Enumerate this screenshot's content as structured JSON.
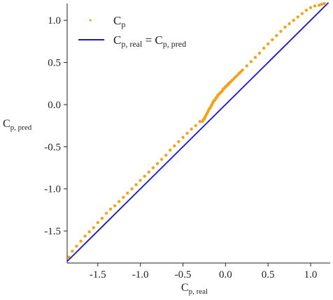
{
  "chart_data": {
    "type": "scatter",
    "title": "",
    "xlabel": {
      "main": "C",
      "sub": "p, real"
    },
    "ylabel": {
      "main": "C",
      "sub": "p, pred"
    },
    "xlim": [
      -1.86,
      1.23
    ],
    "ylim": [
      -1.88,
      1.2
    ],
    "xticks": [
      -1.5,
      -1.0,
      -0.5,
      0.0,
      0.5,
      1.0
    ],
    "yticks": [
      -1.5,
      -1.0,
      -0.5,
      0.0,
      0.5,
      1.0
    ],
    "xtick_labels": [
      "-1.5",
      "-1.0",
      "-0.5",
      "0.0",
      "0.5",
      "1.0"
    ],
    "ytick_labels": [
      "-1.5",
      "-1.0",
      "-0.5",
      "0.0",
      "0.5",
      "1.0"
    ],
    "grid": false,
    "legend_position": "top-left",
    "series": [
      {
        "name": {
          "main": "C",
          "sub": "p"
        },
        "kind": "scatter",
        "color": "#f5a21b",
        "x": [
          -1.84,
          -1.8,
          -1.75,
          -1.7,
          -1.65,
          -1.6,
          -1.55,
          -1.5,
          -1.45,
          -1.4,
          -1.35,
          -1.3,
          -1.25,
          -1.2,
          -1.15,
          -1.1,
          -1.05,
          -1.0,
          -0.95,
          -0.9,
          -0.85,
          -0.8,
          -0.75,
          -0.7,
          -0.65,
          -0.6,
          -0.55,
          -0.5,
          -0.45,
          -0.4,
          -0.35,
          -0.3,
          -0.27,
          -0.26,
          -0.25,
          -0.24,
          -0.23,
          -0.22,
          -0.21,
          -0.2,
          -0.19,
          -0.18,
          -0.17,
          -0.16,
          -0.15,
          -0.14,
          -0.13,
          -0.12,
          -0.11,
          -0.1,
          -0.09,
          -0.08,
          -0.07,
          -0.06,
          -0.05,
          -0.04,
          -0.03,
          -0.02,
          -0.01,
          0.0,
          0.01,
          0.02,
          0.03,
          0.04,
          0.05,
          0.06,
          0.08,
          0.1,
          0.12,
          0.14,
          0.16,
          0.18,
          0.2,
          0.25,
          0.3,
          0.35,
          0.4,
          0.45,
          0.5,
          0.55,
          0.6,
          0.65,
          0.7,
          0.75,
          0.8,
          0.85,
          0.9,
          0.95,
          1.0,
          1.05,
          1.1,
          1.13,
          1.16
        ],
        "y": [
          -1.81,
          -1.74,
          -1.68,
          -1.62,
          -1.56,
          -1.51,
          -1.46,
          -1.4,
          -1.35,
          -1.29,
          -1.24,
          -1.2,
          -1.15,
          -1.1,
          -1.05,
          -1.0,
          -0.95,
          -0.9,
          -0.85,
          -0.8,
          -0.75,
          -0.7,
          -0.65,
          -0.6,
          -0.54,
          -0.49,
          -0.44,
          -0.39,
          -0.34,
          -0.29,
          -0.25,
          -0.2,
          -0.2,
          -0.18,
          -0.17,
          -0.15,
          -0.13,
          -0.11,
          -0.09,
          -0.07,
          -0.05,
          -0.04,
          -0.02,
          0.0,
          0.02,
          0.04,
          0.05,
          0.06,
          0.08,
          0.09,
          0.11,
          0.12,
          0.13,
          0.14,
          0.15,
          0.16,
          0.18,
          0.19,
          0.2,
          0.21,
          0.22,
          0.23,
          0.24,
          0.25,
          0.26,
          0.27,
          0.29,
          0.31,
          0.33,
          0.35,
          0.37,
          0.39,
          0.41,
          0.46,
          0.51,
          0.56,
          0.61,
          0.67,
          0.72,
          0.77,
          0.82,
          0.87,
          0.92,
          0.96,
          1.0,
          1.04,
          1.08,
          1.12,
          1.15,
          1.17,
          1.18,
          1.19,
          1.2
        ]
      },
      {
        "name": {
          "main": "C",
          "sub": "p, real",
          "eq": " = ",
          "main2": "C",
          "sub2": "p, pred"
        },
        "kind": "line",
        "color": "#1717c8",
        "x": [
          -1.86,
          1.21
        ],
        "y": [
          -1.86,
          1.21
        ]
      }
    ]
  }
}
